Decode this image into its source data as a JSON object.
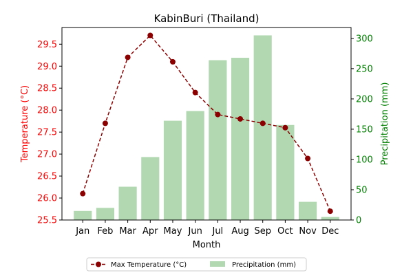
{
  "chart_data": {
    "type": "bar+line",
    "title": "KabinBuri (Thailand)",
    "xlabel": "Month",
    "categories": [
      "Jan",
      "Feb",
      "Mar",
      "Apr",
      "May",
      "Jun",
      "Jul",
      "Aug",
      "Sep",
      "Oct",
      "Nov",
      "Dec"
    ],
    "left_axis": {
      "label": "Temperature (°C)",
      "color": "#ff0000",
      "ylim": [
        25.5,
        29.88
      ],
      "ticks": [
        "25.5",
        "26.0",
        "26.5",
        "27.0",
        "27.5",
        "28.0",
        "28.5",
        "29.0",
        "29.5"
      ]
    },
    "right_axis": {
      "label": "Precipitation (mm)",
      "color": "#008000",
      "ylim": [
        0,
        318
      ],
      "ticks": [
        "0",
        "50",
        "100",
        "150",
        "200",
        "250",
        "300"
      ]
    },
    "series": [
      {
        "name": "Max Temperature (°C)",
        "type": "line",
        "axis": "left",
        "color": "#8b0000",
        "style": "dashed",
        "marker": "circle",
        "values": [
          26.1,
          27.7,
          29.2,
          29.7,
          29.1,
          28.4,
          27.9,
          27.8,
          27.7,
          27.6,
          26.9,
          25.7
        ]
      },
      {
        "name": "Precipitation (mm)",
        "type": "bar",
        "axis": "right",
        "color": "#b2d8b2",
        "values": [
          15,
          20,
          55,
          104,
          164,
          180,
          264,
          268,
          305,
          157,
          30,
          5
        ]
      }
    ],
    "legend": {
      "placement": "bottom-center",
      "columns": 2
    }
  }
}
